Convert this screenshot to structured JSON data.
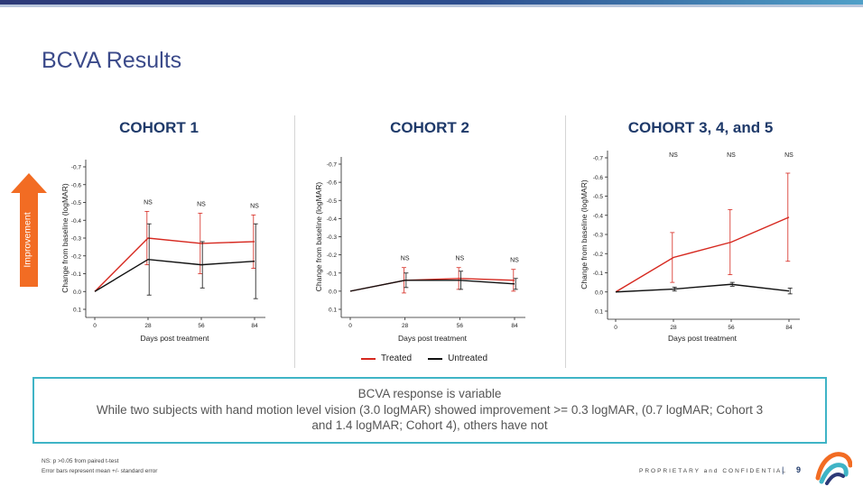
{
  "slide": {
    "title": "BCVA Results",
    "improvement_label": "Improvement",
    "callout": {
      "line1": "BCVA response is variable",
      "line2": "While two subjects with hand motion level vision (3.0 logMAR) showed improvement >= 0.3 logMAR, (0.7 logMAR; Cohort 3 and 1.4 logMAR; Cohort 4), others have not"
    },
    "footnote1": "NS: p >0.05 from paired t-test",
    "footnote2": "Error bars represent mean +/- standard error",
    "proprietary": "PROPRIETARY and CONFIDENTIAL",
    "separator": "|",
    "page_number": "9"
  },
  "legend": {
    "treated": "Treated",
    "untreated": "Untreated"
  },
  "colors": {
    "treated": "#d6281f",
    "untreated": "#111111",
    "title": "#3b4a8a",
    "cohort_title": "#1f3a6a",
    "callout_border": "#3fb4c6",
    "arrow": "#f26c23"
  },
  "chart_data": [
    {
      "type": "line",
      "title": "COHORT 1",
      "xlabel": "Days post treatment",
      "ylabel": "Change from baseline (logMAR)",
      "y_reversed": true,
      "ylim": [
        0.1,
        -0.7
      ],
      "yticks": [
        "-0.7",
        "-0.6",
        "-0.5",
        "-0.4",
        "-0.3",
        "-0.2",
        "-0.1",
        "0.0",
        "0.1"
      ],
      "x": [
        0,
        28,
        56,
        84
      ],
      "series": [
        {
          "name": "Treated",
          "y": [
            0.0,
            -0.3,
            -0.27,
            -0.28
          ],
          "err": [
            0,
            0.15,
            0.17,
            0.15
          ]
        },
        {
          "name": "Untreated",
          "y": [
            0.0,
            -0.18,
            -0.15,
            -0.17
          ],
          "err": [
            0,
            0.2,
            0.13,
            0.21
          ]
        }
      ],
      "annotations": [
        {
          "x": 28,
          "text": "NS"
        },
        {
          "x": 56,
          "text": "NS"
        },
        {
          "x": 84,
          "text": "NS"
        }
      ]
    },
    {
      "type": "line",
      "title": "COHORT 2",
      "xlabel": "Days post treatment",
      "ylabel": "Change from baseline (logMAR)",
      "y_reversed": true,
      "ylim": [
        0.1,
        -0.7
      ],
      "yticks": [
        "-0.7",
        "-0.6",
        "-0.5",
        "-0.4",
        "-0.3",
        "-0.2",
        "-0.1",
        "0.0",
        "0.1"
      ],
      "x": [
        0,
        28,
        56,
        84
      ],
      "series": [
        {
          "name": "Treated",
          "y": [
            0.0,
            -0.06,
            -0.07,
            -0.06
          ],
          "err": [
            0,
            0.07,
            0.06,
            0.06
          ]
        },
        {
          "name": "Untreated",
          "y": [
            0.0,
            -0.06,
            -0.06,
            -0.04
          ],
          "err": [
            0,
            0.04,
            0.05,
            0.03
          ]
        }
      ],
      "annotations": [
        {
          "x": 28,
          "text": "NS"
        },
        {
          "x": 56,
          "text": "NS"
        },
        {
          "x": 84,
          "text": "NS"
        }
      ]
    },
    {
      "type": "line",
      "title": "COHORT 3, 4, and 5",
      "xlabel": "Days post treatment",
      "ylabel": "Change from baseline (logMAR)",
      "y_reversed": true,
      "ylim": [
        0.1,
        -0.7
      ],
      "yticks": [
        "-0.7",
        "-0.6",
        "-0.5",
        "-0.4",
        "-0.3",
        "-0.2",
        "-0.1",
        "0.0",
        "0.1"
      ],
      "x": [
        0,
        28,
        56,
        84
      ],
      "series": [
        {
          "name": "Treated",
          "y": [
            0.0,
            -0.18,
            -0.26,
            -0.39
          ],
          "err": [
            0,
            0.13,
            0.17,
            0.23
          ]
        },
        {
          "name": "Untreated",
          "y": [
            0.0,
            -0.015,
            -0.04,
            -0.005
          ],
          "err": [
            0,
            0.01,
            0.01,
            0.015
          ]
        }
      ],
      "annotations": [
        {
          "x": 28,
          "text": "NS"
        },
        {
          "x": 56,
          "text": "NS"
        },
        {
          "x": 84,
          "text": "NS"
        }
      ]
    }
  ]
}
